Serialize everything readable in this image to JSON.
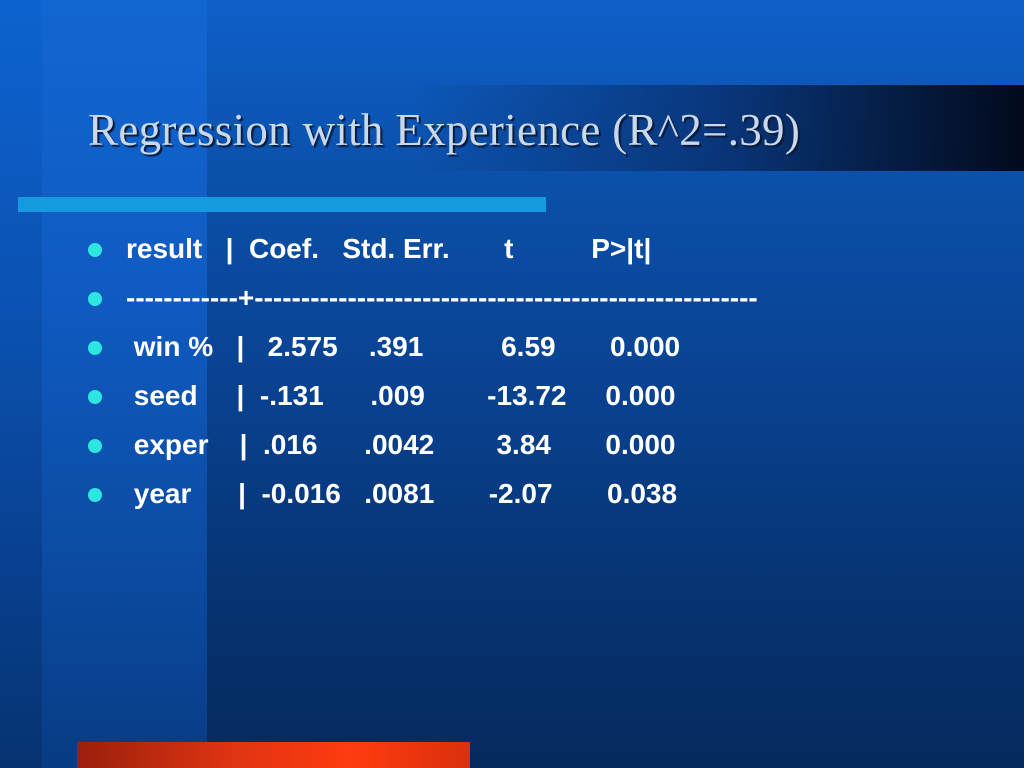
{
  "slide": {
    "title": "Regression with Experience (R^2=.39)",
    "bullets": [
      "result   |  Coef.   Std. Err.       t          P>|t|",
      "------------+------------------------------------------------------",
      " win %   |   2.575    .391          6.59       0.000",
      " seed     |  -.131      .009        -13.72     0.000",
      " exper    |  .016      .0042        3.84       0.000",
      " year      |  -0.016   .0081       -2.07       0.038"
    ]
  },
  "colors": {
    "background": "#0b4fa8",
    "title_text": "#c9d9ea",
    "bullet_text": "#ffffff",
    "bullet_dot": "#2ee6e0",
    "accent_line": "#149bdf",
    "bottom_bar": "#e03412"
  }
}
